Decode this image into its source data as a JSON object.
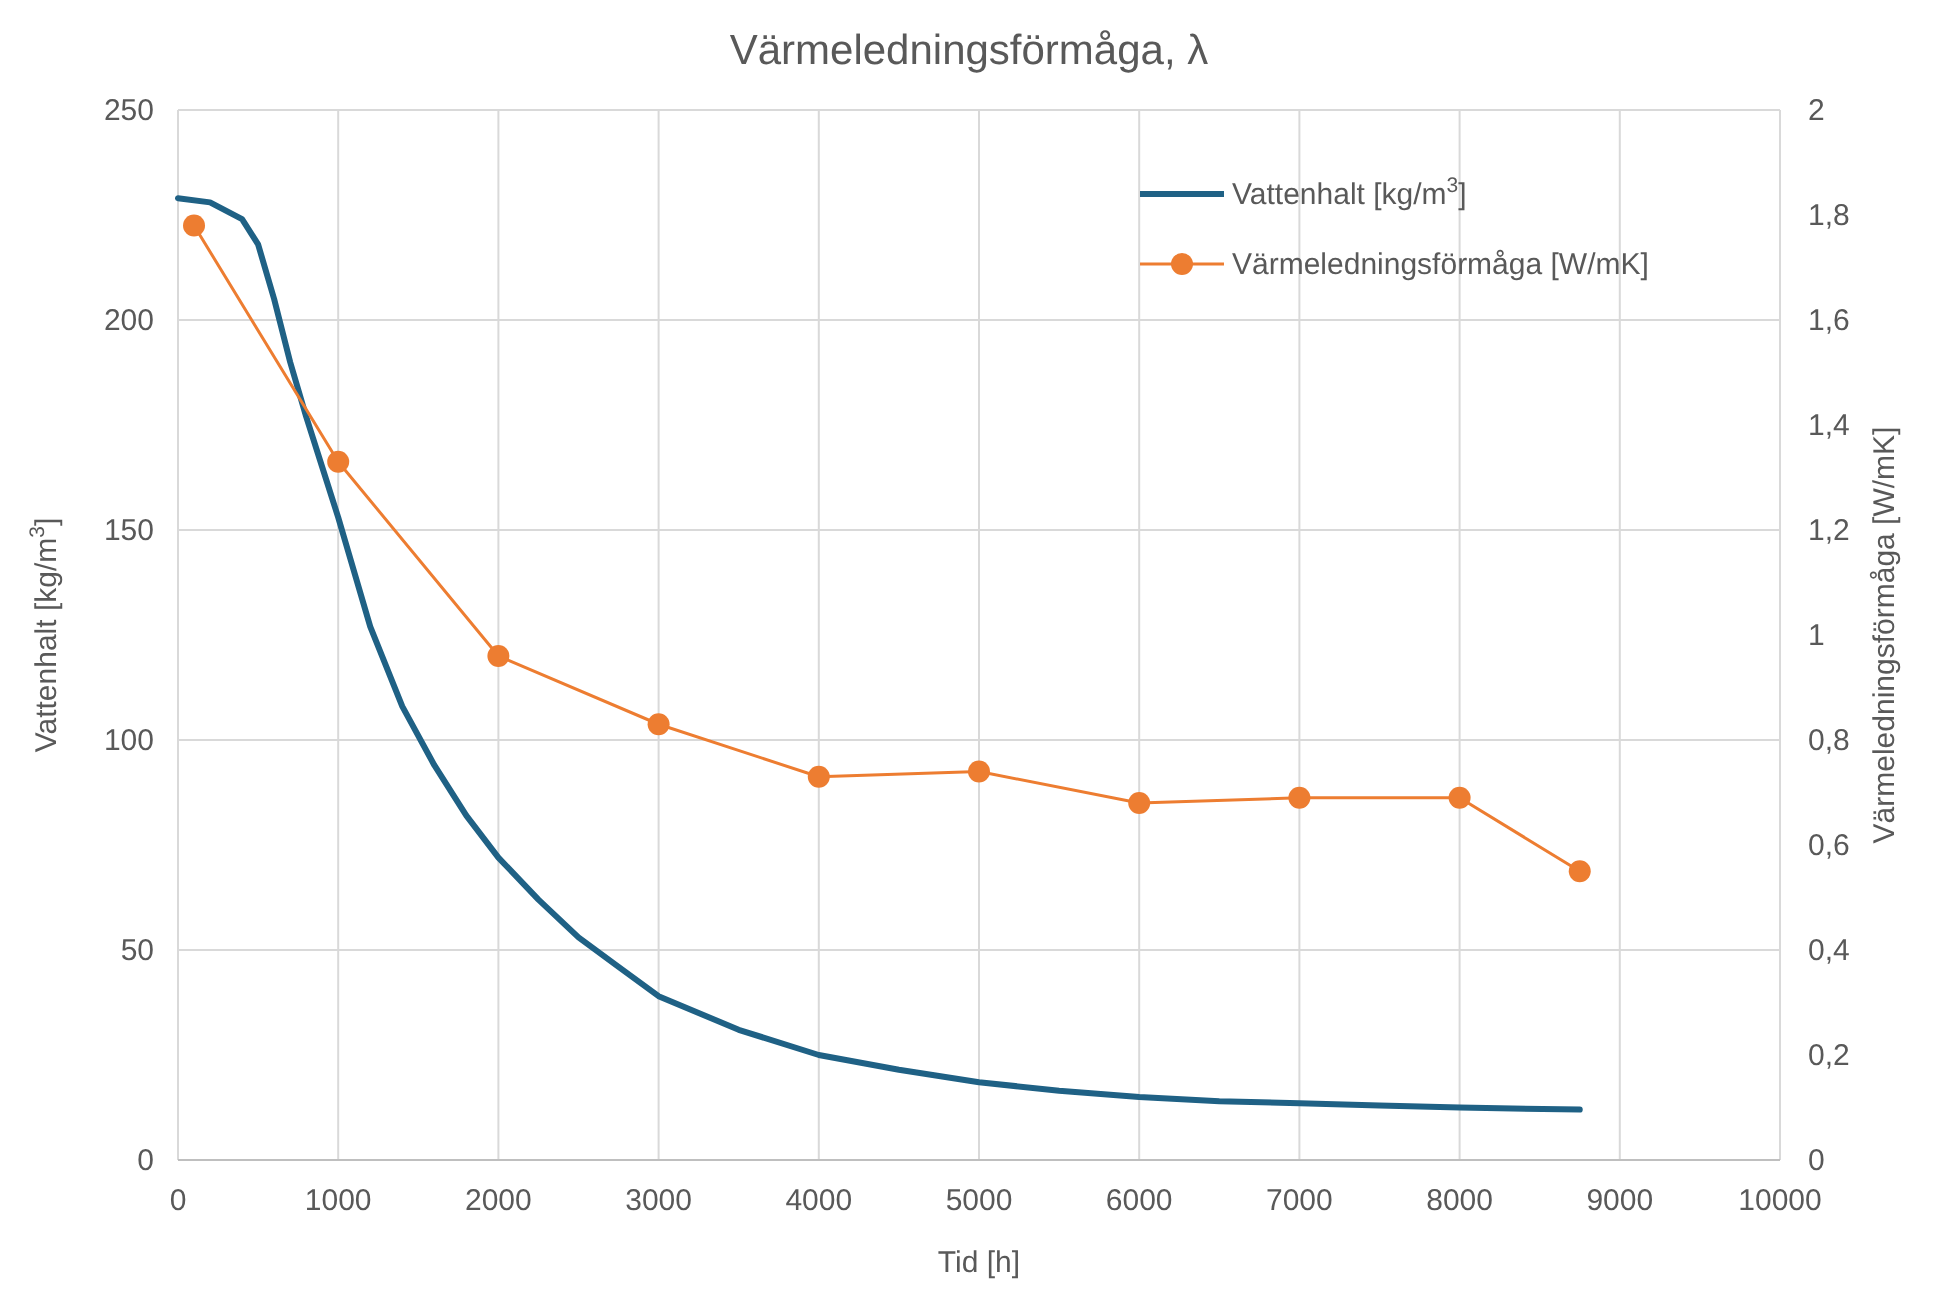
{
  "chart_data": {
    "type": "line",
    "title": "Värmeledningsförmåga, λ",
    "xlabel": "Tid [h]",
    "ylabel": "Vattenhalt [kg/m$^{3}$]",
    "y2label": "Värmeledningsförmåga [W/mK]",
    "xlim": [
      0,
      10000
    ],
    "xticks": [
      0,
      1000,
      2000,
      3000,
      4000,
      5000,
      6000,
      7000,
      8000,
      9000,
      10000
    ],
    "ylim": [
      0,
      250
    ],
    "yticks": [
      0,
      50,
      100,
      150,
      200,
      250
    ],
    "y2lim": [
      0,
      2
    ],
    "y2ticks": [
      {
        "value": 0,
        "label": "0"
      },
      {
        "value": 0.2,
        "label": "0,2"
      },
      {
        "value": 0.4,
        "label": "0,4"
      },
      {
        "value": 0.6,
        "label": "0,6"
      },
      {
        "value": 0.8,
        "label": "0,8"
      },
      {
        "value": 1,
        "label": "1"
      },
      {
        "value": 1.2,
        "label": "1,2"
      },
      {
        "value": 1.4,
        "label": "1,4"
      },
      {
        "value": 1.6,
        "label": "1,6"
      },
      {
        "value": 1.8,
        "label": "1,8"
      },
      {
        "value": 2,
        "label": "2"
      }
    ],
    "grid": true,
    "legend": "top right",
    "series": [
      {
        "name": "Vattenhalt [kg/m$^{3}$]",
        "color": "#1f6185",
        "marker": "none",
        "x": [
          0,
          200,
          400,
          500,
          600,
          700,
          800,
          900,
          1000,
          1200,
          1400,
          1600,
          1800,
          2000,
          2250,
          2500,
          2750,
          3000,
          3500,
          4000,
          4500,
          5000,
          5500,
          6000,
          6500,
          7000,
          7500,
          8000,
          8750
        ],
        "values": [
          229,
          228,
          224,
          218,
          205,
          190,
          177,
          165,
          153,
          127,
          108,
          94,
          82,
          72,
          62,
          53,
          46,
          39,
          31,
          25,
          21.5,
          18.5,
          16.5,
          15,
          14,
          13.5,
          13,
          12.5,
          12
        ]
      },
      {
        "name": "Värmeledningsförmåga [W/mK]",
        "color": "#ed7d31",
        "marker": "circle",
        "axis": "y2",
        "x": [
          100,
          1000,
          2000,
          3000,
          4000,
          5000,
          6000,
          7000,
          8000,
          8750
        ],
        "values": [
          1.78,
          1.33,
          0.96,
          0.83,
          0.73,
          0.74,
          0.68,
          0.69,
          0.69,
          0.55
        ]
      }
    ]
  }
}
